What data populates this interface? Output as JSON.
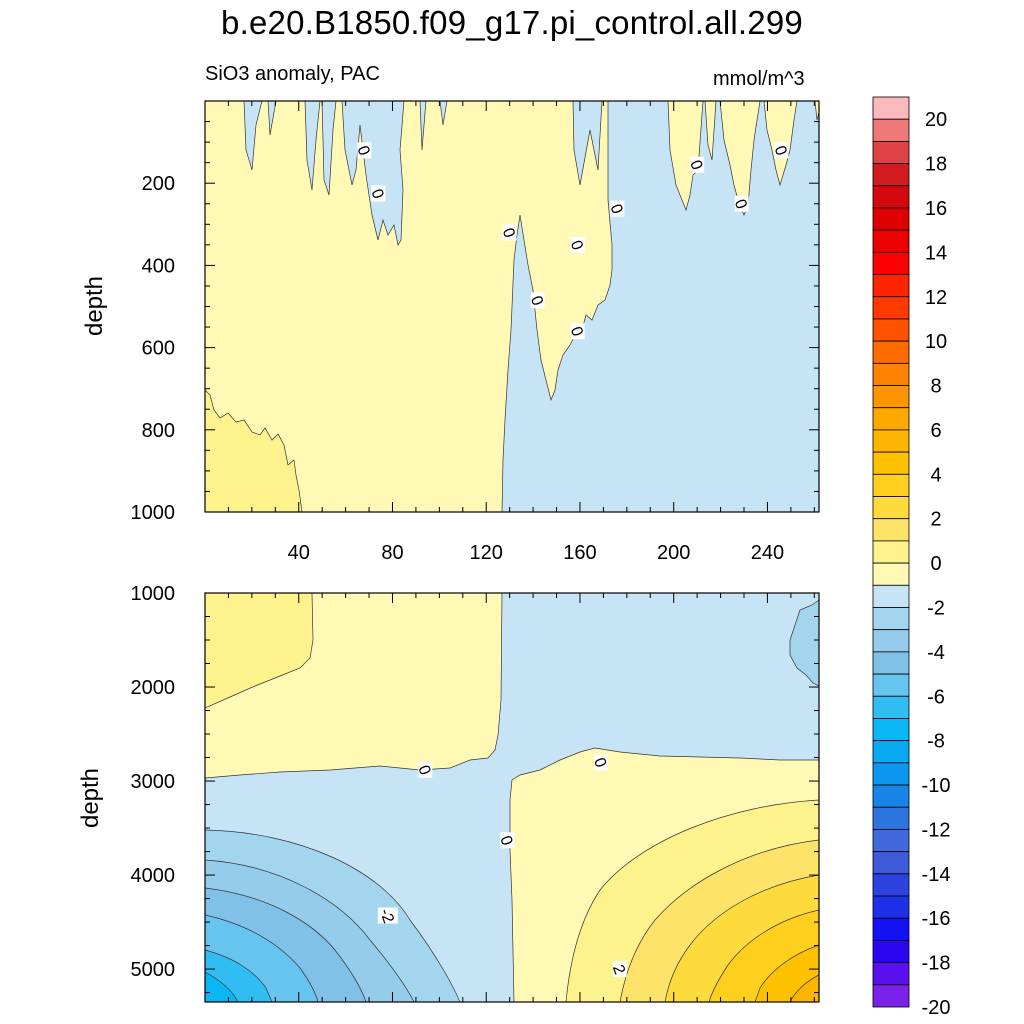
{
  "figure": {
    "title": "b.e20.B1850.f09_g17.pi_control.all.299",
    "subtitle_left": "SiO3 anomaly, PAC",
    "subtitle_right": "mmol/m^3"
  },
  "chart_data": [
    {
      "type": "contour",
      "panel": "top",
      "ylabel": "depth",
      "xlabel": "",
      "xlim": [
        0,
        262
      ],
      "ylim": [
        0,
        1000
      ],
      "y_inverted": true,
      "x_ticks": [
        40,
        80,
        120,
        160,
        200,
        240
      ],
      "y_ticks": [
        200,
        400,
        600,
        800,
        1000
      ],
      "regions": [
        {
          "name": "range 0 to 1",
          "level": 0.5,
          "color": "#fff9b5"
        },
        {
          "name": "range -1 to 0",
          "level": -0.5,
          "color": "#c6e4f6"
        },
        {
          "name": "range 1 to 2",
          "level": 1.5,
          "color": "#fef28d"
        }
      ],
      "contour_labels": [
        {
          "text": "0",
          "x": 68,
          "y": 120
        },
        {
          "text": "0",
          "x": 74,
          "y": 225
        },
        {
          "text": "0",
          "x": 130,
          "y": 320
        },
        {
          "text": "0",
          "x": 142,
          "y": 485
        },
        {
          "text": "0",
          "x": 159,
          "y": 350
        },
        {
          "text": "0",
          "x": 159,
          "y": 560
        },
        {
          "text": "0",
          "x": 176,
          "y": 262
        },
        {
          "text": "0",
          "x": 210,
          "y": 155
        },
        {
          "text": "0",
          "x": 229,
          "y": 250
        },
        {
          "text": "0",
          "x": 246,
          "y": 120
        }
      ]
    },
    {
      "type": "contour",
      "panel": "bottom",
      "ylabel": "depth",
      "xlabel": "",
      "xlim": [
        0,
        262
      ],
      "ylim": [
        1000,
        5350
      ],
      "y_inverted": true,
      "x_ticks": [
        40,
        80,
        120,
        160,
        200,
        240
      ],
      "y_ticks": [
        1000,
        2000,
        3000,
        4000,
        5000
      ],
      "regions": [
        {
          "name": "range 0 to 1",
          "level": 0.5,
          "color": "#fff9b5"
        },
        {
          "name": "range -1 to 0",
          "level": -0.5,
          "color": "#c6e4f6"
        },
        {
          "name": "range 1 to 2",
          "level": 1.5,
          "color": "#fef28d"
        },
        {
          "name": "range -2 to -1",
          "level": -1.5,
          "color": "#a3d5ef"
        },
        {
          "name": "range 2 to 3",
          "level": 2.5,
          "color": "#fde36a"
        }
      ],
      "contour_labels": [
        {
          "text": "0",
          "x": 94,
          "y": 2880
        },
        {
          "text": "0",
          "x": 169,
          "y": 2800
        },
        {
          "text": "0",
          "x": 129,
          "y": 3630
        },
        {
          "text": "-2",
          "x": 78,
          "y": 4430
        },
        {
          "text": "2",
          "x": 177,
          "y": 5000
        }
      ]
    },
    {
      "type": "colorbar",
      "levels": [
        -20,
        -19,
        -18,
        -17,
        -16,
        -15,
        -14,
        -13,
        -12,
        -11,
        -10,
        -9,
        -8,
        -7,
        -6,
        -5,
        -4,
        -3,
        -2,
        -1,
        0,
        1,
        2,
        3,
        4,
        5,
        6,
        7,
        8,
        9,
        10,
        11,
        12,
        13,
        14,
        15,
        16,
        17,
        18,
        19,
        20
      ],
      "tick_labels": [
        "20",
        "18",
        "16",
        "14",
        "12",
        "10",
        "8",
        "6",
        "4",
        "2",
        "0",
        "-2",
        "-4",
        "-6",
        "-8",
        "-10",
        "-12",
        "-14",
        "-16",
        "-18",
        "-20"
      ],
      "colors_top_to_bottom": [
        "#f9b9bd",
        "#ef7879",
        "#de4346",
        "#d11b1f",
        "#d4090d",
        "#de0000",
        "#ec0000",
        "#fd0000",
        "#fe2400",
        "#fe3a00",
        "#fe5200",
        "#fe6b00",
        "#fe8100",
        "#fe9400",
        "#fea900",
        "#feb500",
        "#fec100",
        "#fecf1d",
        "#fedb3c",
        "#fde36a",
        "#fef28d",
        "#fff9b5",
        "#c6e4f6",
        "#a3d5ef",
        "#95cbeb",
        "#81c1e7",
        "#66c4ef",
        "#31bdf2",
        "#0ab6f4",
        "#09a8f3",
        "#0d96f0",
        "#1685e6",
        "#2d74de",
        "#4169dc",
        "#3e5ad9",
        "#2e42e0",
        "#1e30e8",
        "#1412f4",
        "#2c06f0",
        "#5a10ee",
        "#7b22ea"
      ]
    }
  ]
}
